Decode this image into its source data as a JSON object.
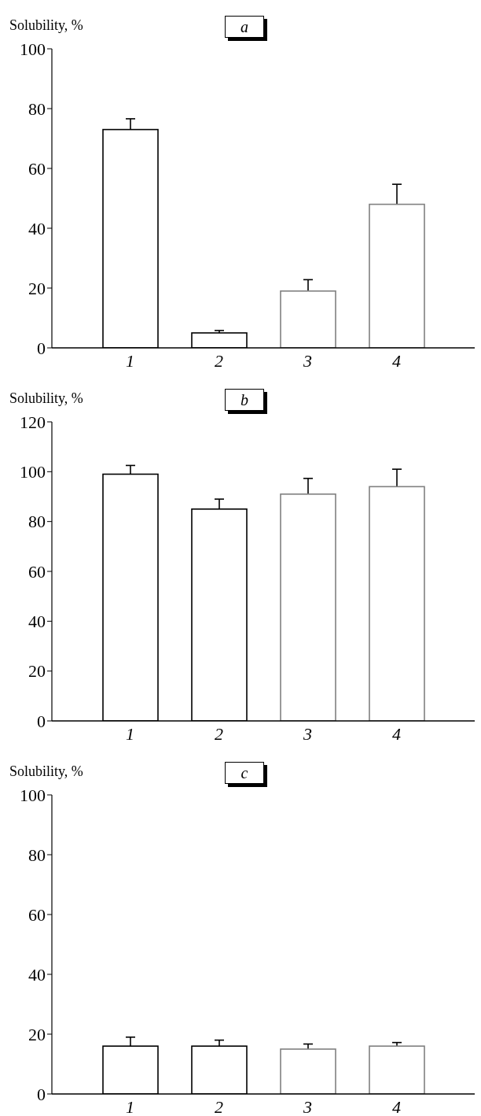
{
  "chart_data": [
    {
      "type": "bar",
      "title": "a",
      "ylabel": "Solubility, %",
      "categories": [
        "1",
        "2",
        "3",
        "4"
      ],
      "values": [
        73,
        5,
        19,
        48
      ],
      "colors": [
        "#000000",
        "#000000",
        "#808080",
        "#808080"
      ],
      "errors": [
        [
          73,
          76.6
        ],
        [
          5,
          5.8
        ],
        [
          19,
          22.8
        ],
        [
          48,
          54.7
        ]
      ],
      "ylim": [
        0,
        100
      ],
      "yticks": [
        0,
        20,
        40,
        60,
        80,
        100
      ]
    },
    {
      "type": "bar",
      "title": "b",
      "ylabel": "Solubility, %",
      "categories": [
        "1",
        "2",
        "3",
        "4"
      ],
      "values": [
        99,
        85,
        91,
        94
      ],
      "colors": [
        "#000000",
        "#000000",
        "#808080",
        "#808080"
      ],
      "errors": [
        [
          99,
          102.5
        ],
        [
          85,
          89
        ],
        [
          91,
          97.3
        ],
        [
          94,
          101
        ]
      ],
      "ylim": [
        0,
        120
      ],
      "yticks": [
        0,
        20,
        40,
        60,
        80,
        100,
        120
      ]
    },
    {
      "type": "bar",
      "title": "c",
      "ylabel": "Solubility, %",
      "categories": [
        "1",
        "2",
        "3",
        "4"
      ],
      "values": [
        16,
        16,
        15,
        16
      ],
      "colors": [
        "#000000",
        "#000000",
        "#808080",
        "#808080"
      ],
      "errors": [
        [
          16,
          19
        ],
        [
          16,
          18
        ],
        [
          15,
          16.7
        ],
        [
          16,
          17.2
        ]
      ],
      "ylim": [
        0,
        100
      ],
      "yticks": [
        0,
        20,
        40,
        60,
        80,
        100
      ]
    }
  ]
}
